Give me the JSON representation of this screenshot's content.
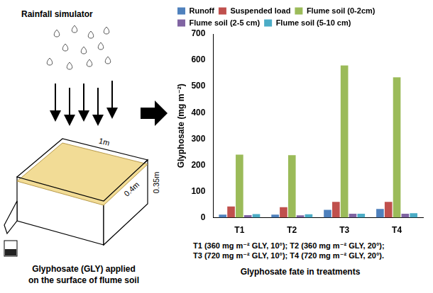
{
  "chart_data": {
    "type": "bar",
    "title": "Glyphosate fate in treatments",
    "ylabel": "Glyphosate (mg m⁻²)",
    "annotations": [
      "T1 (360 mg m⁻² GLY, 10°); T2 (360 mg m⁻² GLY, 20°);",
      "T3 (720 mg m⁻² GLY, 10°); T4 (720 mg m⁻² GLY, 20°)."
    ],
    "categories": [
      "T1",
      "T2",
      "T3",
      "T4"
    ],
    "series": [
      {
        "name": "Runoff",
        "color": "#4f81bd",
        "values": [
          12,
          12,
          30,
          33
        ]
      },
      {
        "name": "Suspended load",
        "color": "#c0504d",
        "values": [
          43,
          40,
          60,
          60
        ]
      },
      {
        "name": "Flume soil (0-2cm)",
        "color": "#9bbb59",
        "values": [
          240,
          238,
          580,
          535
        ]
      },
      {
        "name": "Flume soil (2-5 cm)",
        "color": "#8064a2",
        "values": [
          10,
          9,
          15,
          15
        ]
      },
      {
        "name": "Flume soil (5-10 cm)",
        "color": "#4bacc6",
        "values": [
          14,
          13,
          15,
          17
        ]
      }
    ],
    "ylim": [
      0,
      700
    ],
    "yticks": [
      0,
      100,
      200,
      300,
      400,
      500,
      600,
      700
    ],
    "grid": false,
    "legend": "top"
  },
  "diagram": {
    "title": "Rainfall simulator",
    "dimensions": {
      "length": "1m",
      "width": "0.4m",
      "depth": "0.35m"
    },
    "caption": [
      "Glyphosate (GLY) applied",
      "on the surface of flume soil"
    ]
  }
}
